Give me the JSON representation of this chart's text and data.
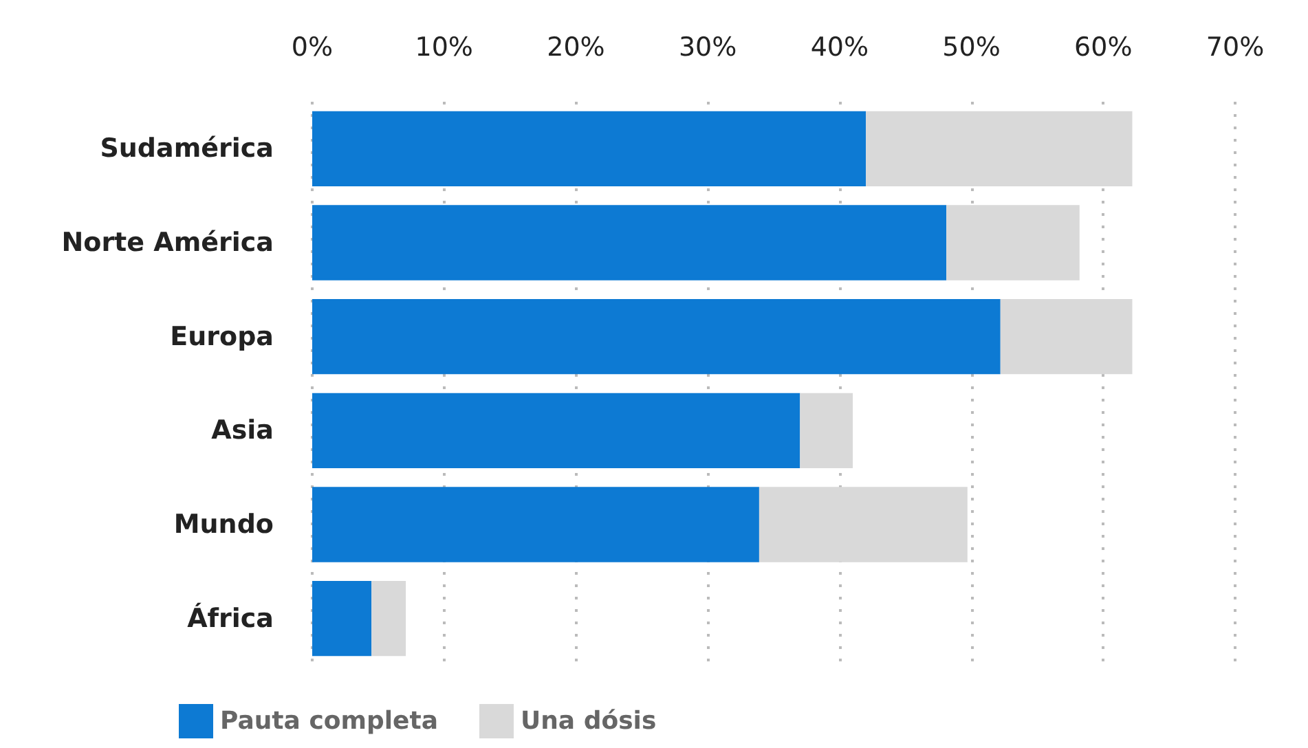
{
  "chart_data": {
    "type": "bar",
    "orientation": "horizontal",
    "stacked": true,
    "categories": [
      "Sudamérica",
      "Norte América",
      "Europa",
      "Asia",
      "Mundo",
      "África"
    ],
    "series": [
      {
        "name": "Pauta completa",
        "color": "#0d7ad3",
        "values": [
          42.0,
          48.1,
          52.2,
          37.0,
          33.9,
          4.5
        ]
      },
      {
        "name": "Una dósis",
        "color": "#d9d9d9",
        "values": [
          20.2,
          10.1,
          10.0,
          4.0,
          15.8,
          2.6
        ]
      }
    ],
    "xlim": [
      0,
      70
    ],
    "xticks": [
      {
        "value": 0,
        "label": "0%"
      },
      {
        "value": 10,
        "label": "10%"
      },
      {
        "value": 20,
        "label": "20%"
      },
      {
        "value": 30,
        "label": "30%"
      },
      {
        "value": 40,
        "label": "40%"
      },
      {
        "value": 50,
        "label": "50%"
      },
      {
        "value": 60,
        "label": "60%"
      },
      {
        "value": 70,
        "label": "70%"
      }
    ],
    "grid": "x",
    "legend": "bottom left"
  }
}
